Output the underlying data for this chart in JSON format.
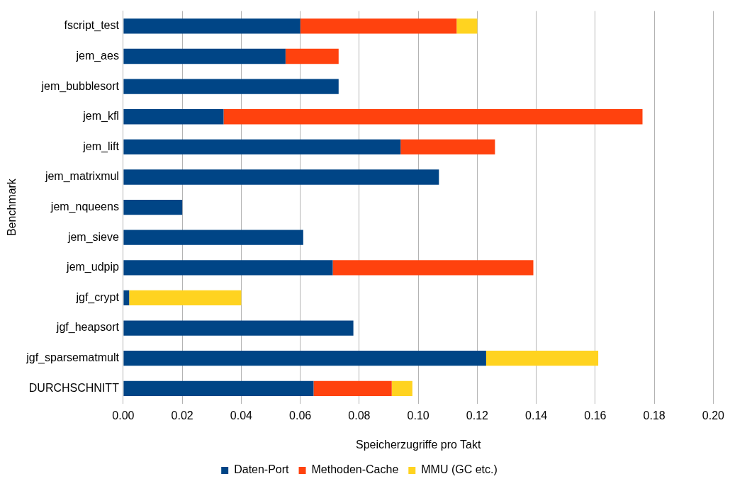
{
  "chart_data": {
    "type": "bar",
    "orientation": "horizontal",
    "stacked": true,
    "xlabel": "Speicherzugriffe pro Takt",
    "ylabel": "Benchmark",
    "categories": [
      "fscript_test",
      "jem_aes",
      "jem_bubblesort",
      "jem_kfl",
      "jem_lift",
      "jem_matrixmul",
      "jem_nqueens",
      "jem_sieve",
      "jem_udpip",
      "jgf_crypt",
      "jgf_heapsort",
      "jgf_sparsematmult",
      "DURCHSCHNITT"
    ],
    "series": [
      {
        "name": "Daten-Port",
        "color": "#004586",
        "values": [
          0.06,
          0.055,
          0.073,
          0.034,
          0.094,
          0.107,
          0.02,
          0.061,
          0.071,
          0.002,
          0.078,
          0.123,
          0.0645
        ]
      },
      {
        "name": "Methoden-Cache",
        "color": "#ff420e",
        "values": [
          0.053,
          0.018,
          null,
          0.142,
          0.032,
          null,
          null,
          null,
          0.068,
          null,
          null,
          null,
          0.0265
        ]
      },
      {
        "name": "MMU (GC etc.)",
        "color": "#ffd320",
        "values": [
          0.007,
          null,
          null,
          null,
          null,
          null,
          null,
          null,
          null,
          0.038,
          null,
          0.038,
          0.007
        ]
      }
    ],
    "xlim": [
      0,
      0.2
    ],
    "xticks": [
      {
        "value": 0,
        "label": "0.00"
      },
      {
        "value": 0.02,
        "label": "0.02"
      },
      {
        "value": 0.04,
        "label": "0.04"
      },
      {
        "value": 0.06,
        "label": "0.06"
      },
      {
        "value": 0.08,
        "label": "0.08"
      },
      {
        "value": 0.1,
        "label": "0.10"
      },
      {
        "value": 0.12,
        "label": "0.12"
      },
      {
        "value": 0.14,
        "label": "0.14"
      },
      {
        "value": 0.16,
        "label": "0.16"
      },
      {
        "value": 0.18,
        "label": "0.18"
      },
      {
        "value": 0.2,
        "label": "0.20"
      }
    ],
    "grid": "x",
    "legend": "bottom"
  }
}
